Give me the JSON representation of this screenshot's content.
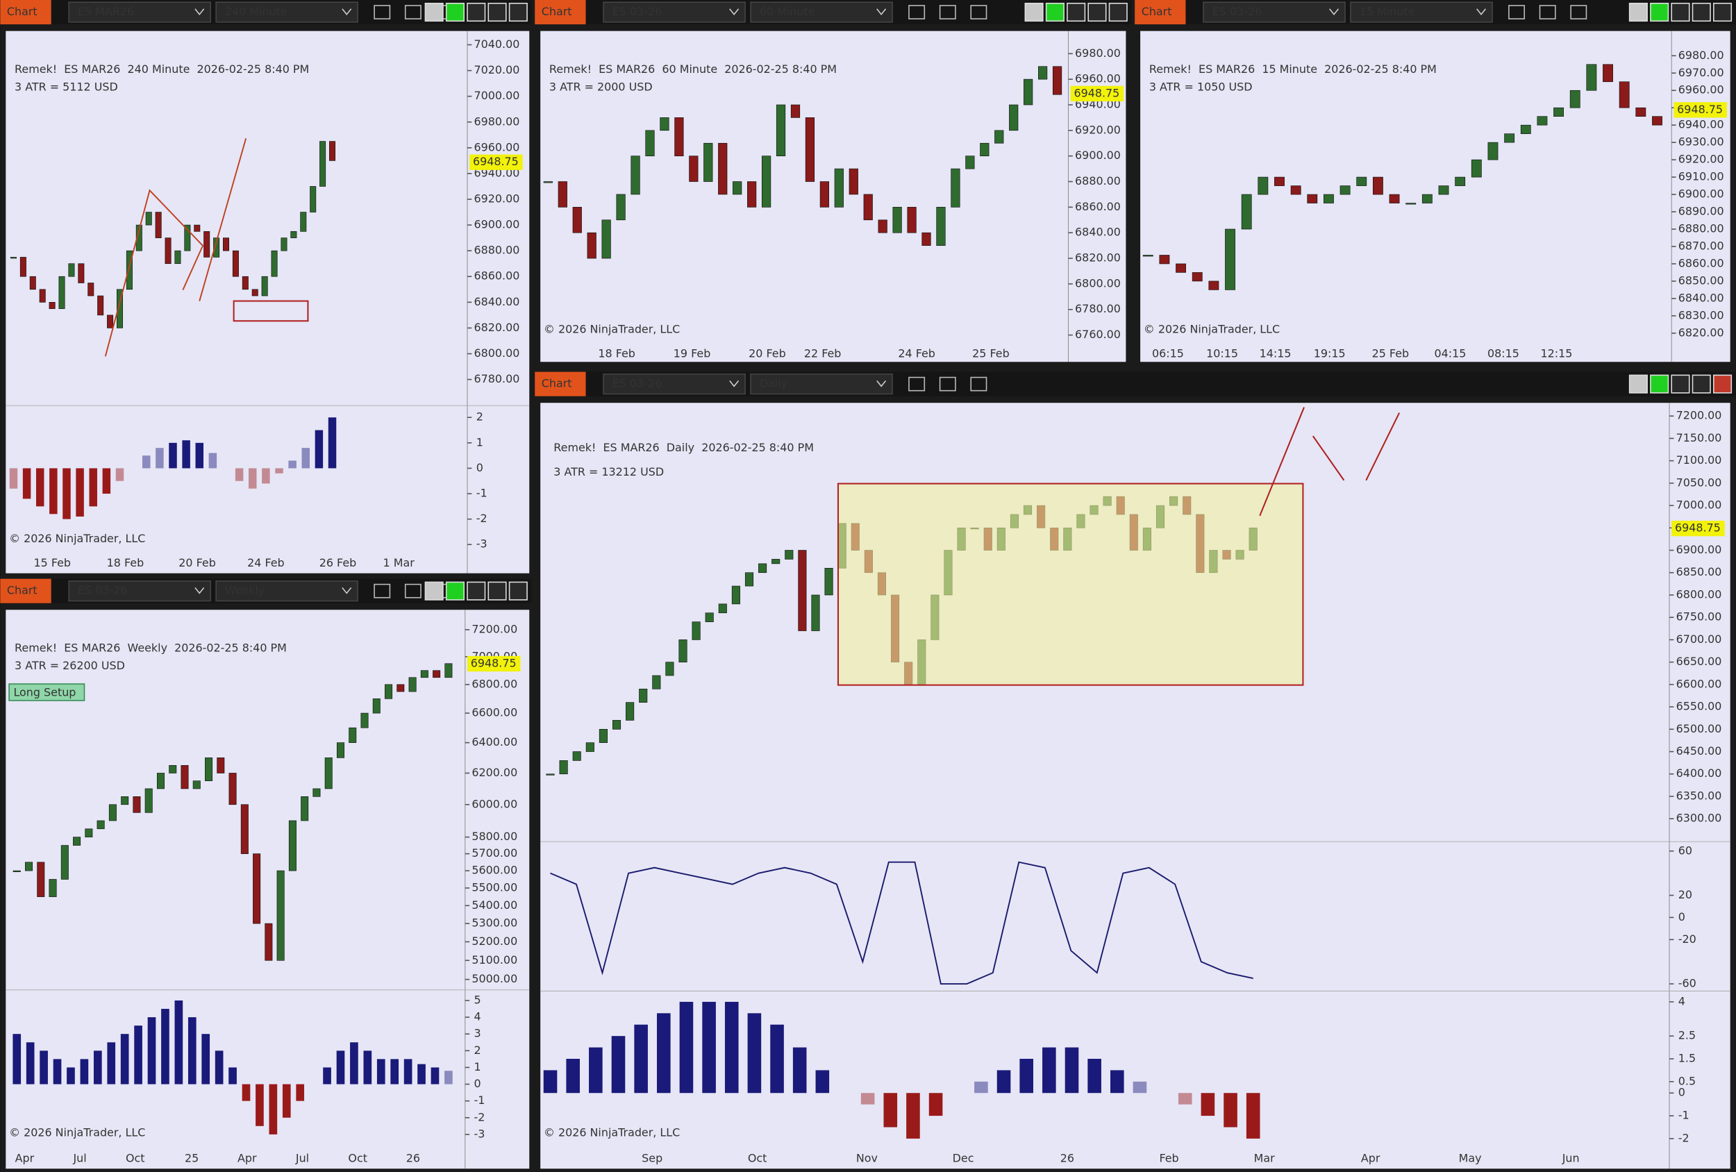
{
  "candle_colors": {
    "up": "#2f6b2f",
    "down": "#8b1a1a"
  },
  "windows": [
    {
      "tab": "Chart",
      "instrument": "ES MAR26",
      "interval": "240 Minute",
      "title": "Remek!  ES MAR26  240 Minute  2026-02-25 8:40 PM",
      "atr": "3 ATR = 5112 USD",
      "copyright": "© 2026 NinjaTrader, LLC",
      "last_price": 6948.75,
      "price": {
        "ylim": [
          6761,
          7049
        ],
        "yticks": [
          {
            "value": 7040,
            "label": "7040.00"
          },
          {
            "value": 7020,
            "label": "7020.00"
          },
          {
            "value": 7000,
            "label": "7000.00"
          },
          {
            "value": 6980,
            "label": "6980.00"
          },
          {
            "value": 6960,
            "label": "6960.00"
          },
          {
            "value": 6940,
            "label": "6940.00"
          },
          {
            "value": 6920,
            "label": "6920.00"
          },
          {
            "value": 6900,
            "label": "6900.00"
          },
          {
            "value": 6880,
            "label": "6880.00"
          },
          {
            "value": 6860,
            "label": "6860.00"
          },
          {
            "value": 6840,
            "label": "6840.00"
          },
          {
            "value": 6820,
            "label": "6820.00"
          },
          {
            "value": 6800,
            "label": "6800.00"
          },
          {
            "value": 6780,
            "label": "6780.00"
          }
        ]
      },
      "closes": [
        6875,
        6860,
        6850,
        6840,
        6835,
        6860,
        6870,
        6855,
        6845,
        6830,
        6820,
        6850,
        6880,
        6900,
        6910,
        6890,
        6870,
        6880,
        6900,
        6895,
        6875,
        6890,
        6880,
        6860,
        6850,
        6845,
        6860,
        6880,
        6890,
        6895,
        6910,
        6930,
        6965,
        6950
      ],
      "time_labels": [
        "15 Feb",
        "18 Feb",
        "20 Feb",
        "24 Feb",
        "26 Feb",
        "1 Mar"
      ],
      "panes": [
        {
          "type": "histogram",
          "color": "#1a1a7a",
          "ylim": [
            -3.13,
            2.4
          ],
          "yticks": [
            2,
            1,
            0,
            -1,
            -2,
            -3
          ],
          "values": [
            -0.8,
            -1.2,
            -1.5,
            -1.8,
            -2,
            -1.9,
            -1.5,
            -1,
            -0.5,
            0,
            0.5,
            0.8,
            1,
            1.1,
            1,
            0.6,
            0,
            -0.5,
            -0.8,
            -0.6,
            -0.2,
            0.3,
            0.8,
            1.5,
            2
          ]
        }
      ]
    },
    {
      "tab": "Chart",
      "instrument": "ES 03-26",
      "interval": "60 Minute",
      "title": "Remek!  ES MAR26  60 Minute  2026-02-25 8:40 PM",
      "atr": "3 ATR = 2000 USD",
      "copyright": "© 2026 NinjaTrader, LLC",
      "last_price": 6948.75,
      "price": {
        "ylim": [
          6752,
          6996
        ],
        "yticks": [
          {
            "value": 6980,
            "label": "6980.00"
          },
          {
            "value": 6960,
            "label": "6960.00"
          },
          {
            "value": 6940,
            "label": "6940.00"
          },
          {
            "value": 6920,
            "label": "6920.00"
          },
          {
            "value": 6900,
            "label": "6900.00"
          },
          {
            "value": 6880,
            "label": "6880.00"
          },
          {
            "value": 6860,
            "label": "6860.00"
          },
          {
            "value": 6840,
            "label": "6840.00"
          },
          {
            "value": 6820,
            "label": "6820.00"
          },
          {
            "value": 6800,
            "label": "6800.00"
          },
          {
            "value": 6780,
            "label": "6780.00"
          },
          {
            "value": 6760,
            "label": "6760.00"
          }
        ]
      },
      "closes": [
        6880,
        6860,
        6840,
        6820,
        6850,
        6870,
        6900,
        6920,
        6930,
        6900,
        6880,
        6910,
        6870,
        6880,
        6860,
        6900,
        6940,
        6930,
        6880,
        6860,
        6890,
        6870,
        6850,
        6840,
        6860,
        6840,
        6830,
        6860,
        6890,
        6900,
        6910,
        6920,
        6940,
        6960,
        6970,
        6948
      ],
      "time_labels": [
        "18 Feb",
        "19 Feb",
        "20 Feb",
        "22 Feb",
        "24 Feb",
        "25 Feb"
      ],
      "panes": []
    },
    {
      "tab": "Chart",
      "instrument": "ES 03-26",
      "interval": "15 Minute",
      "title": "Remek!  ES MAR26  15 Minute  2026-02-25 8:40 PM",
      "atr": "3 ATR = 1050 USD",
      "copyright": "© 2026 NinjaTrader, LLC",
      "last_price": 6948.75,
      "price": {
        "ylim": [
          6813,
          6993
        ],
        "yticks": [
          {
            "value": 6980,
            "label": "6980.00"
          },
          {
            "value": 6970,
            "label": "6970.00"
          },
          {
            "value": 6960,
            "label": "6960.00"
          },
          {
            "value": 6950,
            "label": "6950.00"
          },
          {
            "value": 6940,
            "label": "6940.00"
          },
          {
            "value": 6930,
            "label": "6930.00"
          },
          {
            "value": 6920,
            "label": "6920.00"
          },
          {
            "value": 6910,
            "label": "6910.00"
          },
          {
            "value": 6900,
            "label": "6900.00"
          },
          {
            "value": 6890,
            "label": "6890.00"
          },
          {
            "value": 6880,
            "label": "6880.00"
          },
          {
            "value": 6870,
            "label": "6870.00"
          },
          {
            "value": 6860,
            "label": "6860.00"
          },
          {
            "value": 6850,
            "label": "6850.00"
          },
          {
            "value": 6840,
            "label": "6840.00"
          },
          {
            "value": 6830,
            "label": "6830.00"
          },
          {
            "value": 6820,
            "label": "6820.00"
          }
        ]
      },
      "closes": [
        6865,
        6860,
        6855,
        6850,
        6845,
        6880,
        6900,
        6910,
        6905,
        6900,
        6895,
        6900,
        6905,
        6910,
        6900,
        6895,
        6895,
        6900,
        6905,
        6910,
        6920,
        6930,
        6935,
        6940,
        6945,
        6950,
        6960,
        6975,
        6965,
        6950,
        6945,
        6940
      ],
      "time_labels": [
        "06:15",
        "10:15",
        "14:15",
        "19:15",
        "25 Feb",
        "04:15",
        "08:15",
        "12:15"
      ],
      "panes": []
    },
    {
      "tab": "Chart",
      "instrument": "ES 03-26",
      "interval": "Weekly",
      "title": "Remek!  ES MAR26  Weekly  2026-02-25 8:40 PM",
      "atr": "3 ATR = 26200 USD",
      "copyright": "© 2026 NinjaTrader, LLC",
      "last_price": 6948.75,
      "label": "Long Setup",
      "price": {
        "log_scale": true,
        "ylim": [
          4954,
          7317
        ],
        "yticks": [
          {
            "value": 7200,
            "label": "7200.00"
          },
          {
            "value": 7000,
            "label": "7000.00"
          },
          {
            "value": 6800,
            "label": "6800.00"
          },
          {
            "value": 6600,
            "label": "6600.00"
          },
          {
            "value": 6400,
            "label": "6400.00"
          },
          {
            "value": 6200,
            "label": "6200.00"
          },
          {
            "value": 6000,
            "label": "6000.00"
          },
          {
            "value": 5800,
            "label": "5800.00"
          },
          {
            "value": 5700,
            "label": "5700.00"
          },
          {
            "value": 5600,
            "label": "5600.00"
          },
          {
            "value": 5500,
            "label": "5500.00"
          },
          {
            "value": 5400,
            "label": "5400.00"
          },
          {
            "value": 5300,
            "label": "5300.00"
          },
          {
            "value": 5200,
            "label": "5200.00"
          },
          {
            "value": 5100,
            "label": "5100.00"
          },
          {
            "value": 5000,
            "label": "5000.00"
          }
        ]
      },
      "closes": [
        5600,
        5650,
        5450,
        5550,
        5750,
        5800,
        5850,
        5900,
        6000,
        6050,
        5950,
        6100,
        6200,
        6250,
        6100,
        6150,
        6300,
        6200,
        6000,
        5700,
        5300,
        5100,
        5600,
        5900,
        6050,
        6100,
        6300,
        6400,
        6500,
        6600,
        6700,
        6800,
        6750,
        6850,
        6900,
        6850,
        6950
      ],
      "time_labels": [
        "Apr",
        "Jul",
        "Oct",
        "25",
        "Apr",
        "Jul",
        "Oct",
        "26"
      ],
      "panes": [
        {
          "type": "histogram",
          "color": "#1a1a7a",
          "ylim": [
            -3.46,
            5.53
          ],
          "yticks": [
            5,
            4,
            3,
            2,
            1,
            0,
            -1,
            -2,
            -3
          ],
          "values": [
            3,
            2.5,
            2,
            1.5,
            1,
            1.5,
            2,
            2.5,
            3,
            3.5,
            4,
            4.5,
            5,
            4,
            3,
            2,
            1,
            -1,
            -2.5,
            -3,
            -2,
            -1,
            0,
            1,
            2,
            2.5,
            2,
            1.5,
            1.5,
            1.5,
            1.2,
            1,
            0.8
          ]
        }
      ]
    },
    {
      "tab": "Chart",
      "instrument": "ES 03-26",
      "interval": "Daily",
      "title": "Remek!  ES MAR26  Daily  2026-02-25 8:40 PM",
      "atr": "3 ATR = 13212 USD",
      "copyright": "© 2026 NinjaTrader, LLC",
      "last_price": 6948.75,
      "price": {
        "ylim": [
          6250,
          7227
        ],
        "yticks": [
          {
            "value": 7200,
            "label": "7200.00"
          },
          {
            "value": 7150,
            "label": "7150.00"
          },
          {
            "value": 7100,
            "label": "7100.00"
          },
          {
            "value": 7050,
            "label": "7050.00"
          },
          {
            "value": 7000,
            "label": "7000.00"
          },
          {
            "value": 6950,
            "label": "6950.00"
          },
          {
            "value": 6900,
            "label": "6900.00"
          },
          {
            "value": 6850,
            "label": "6850.00"
          },
          {
            "value": 6800,
            "label": "6800.00"
          },
          {
            "value": 6750,
            "label": "6750.00"
          },
          {
            "value": 6700,
            "label": "6700.00"
          },
          {
            "value": 6650,
            "label": "6650.00"
          },
          {
            "value": 6600,
            "label": "6600.00"
          },
          {
            "value": 6550,
            "label": "6550.00"
          },
          {
            "value": 6500,
            "label": "6500.00"
          },
          {
            "value": 6450,
            "label": "6450.00"
          },
          {
            "value": 6400,
            "label": "6400.00"
          },
          {
            "value": 6350,
            "label": "6350.00"
          },
          {
            "value": 6300,
            "label": "6300.00"
          }
        ]
      },
      "closes": [
        6400,
        6430,
        6450,
        6470,
        6500,
        6520,
        6560,
        6590,
        6620,
        6650,
        6700,
        6740,
        6760,
        6780,
        6820,
        6850,
        6870,
        6880,
        6900,
        6720,
        6800,
        6860,
        6960,
        6900,
        6850,
        6800,
        6650,
        6600,
        6700,
        6800,
        6900,
        6950,
        6950,
        6900,
        6950,
        6980,
        7000,
        6950,
        6900,
        6950,
        6980,
        7000,
        7020,
        6980,
        6900,
        6950,
        7000,
        7020,
        6980,
        6850,
        6900,
        6880,
        6900,
        6950
      ],
      "time_labels": [
        "Sep",
        "Oct",
        "Nov",
        "Dec",
        "26",
        "Feb",
        "Mar",
        "Apr",
        "May",
        "Jun"
      ],
      "panes": [
        {
          "type": "line",
          "color": "#1a1a6e",
          "ylim": [
            -66,
            67
          ],
          "yticks": [
            60,
            20,
            0,
            -20,
            -60
          ],
          "values": [
            40,
            30,
            -50,
            40,
            45,
            40,
            35,
            30,
            40,
            45,
            40,
            30,
            -40,
            50,
            50,
            -60,
            -60,
            -50,
            50,
            45,
            -30,
            -50,
            40,
            45,
            30,
            -40,
            -50,
            -55
          ]
        },
        {
          "type": "histogram",
          "color": "#1a1a7a",
          "ylim": [
            -2.3,
            4.4
          ],
          "yticks": [
            4,
            2.5,
            1.5,
            0.5,
            0,
            -1,
            -2
          ],
          "values": [
            1,
            1.5,
            2,
            2.5,
            3,
            3.5,
            4,
            4,
            4,
            3.5,
            3,
            2,
            1,
            0,
            -0.5,
            -1.5,
            -2,
            -1,
            0,
            0.5,
            1,
            1.5,
            2,
            2,
            1.5,
            1,
            0.5,
            0,
            -0.5,
            -1,
            -1.5,
            -2
          ]
        }
      ]
    }
  ]
}
